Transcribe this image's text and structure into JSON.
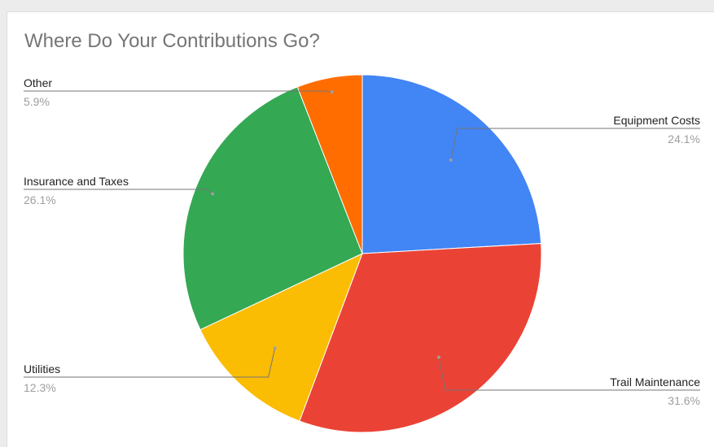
{
  "chart_data": {
    "type": "pie",
    "title": "Where Do Your Contributions Go?",
    "slices": [
      {
        "label": "Equipment Costs",
        "value": 24.1,
        "display": "24.1%",
        "color": "#4285f4"
      },
      {
        "label": "Trail Maintenance",
        "value": 31.6,
        "display": "31.6%",
        "color": "#ea4335"
      },
      {
        "label": "Utilities",
        "value": 12.3,
        "display": "12.3%",
        "color": "#fbbc04"
      },
      {
        "label": "Insurance and Taxes",
        "value": 26.1,
        "display": "26.1%",
        "color": "#34a853"
      },
      {
        "label": "Other",
        "value": 5.9,
        "display": "5.9%",
        "color": "#ff6d01"
      }
    ]
  }
}
